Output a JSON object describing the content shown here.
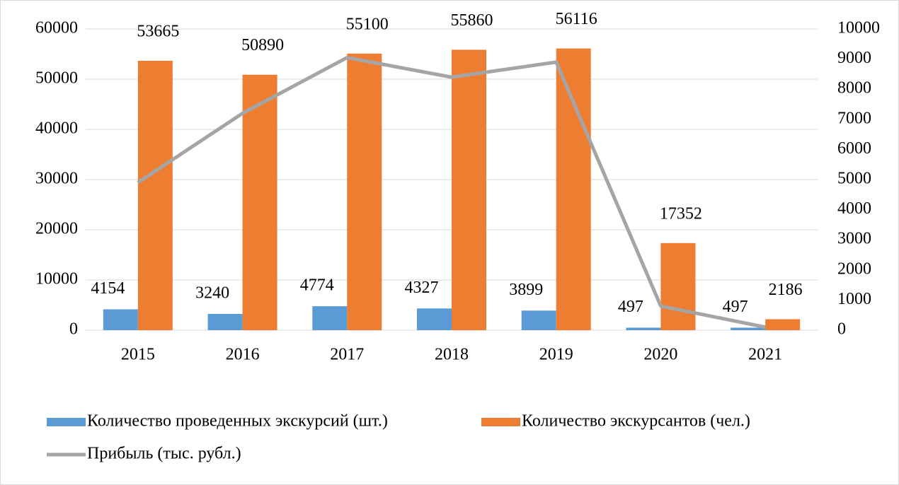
{
  "chart_data": {
    "type": "bar",
    "categories": [
      "2015",
      "2016",
      "2017",
      "2018",
      "2019",
      "2020",
      "2021"
    ],
    "series": [
      {
        "name": "Количество проведенных экскурсий (шт.)",
        "color": "#5b9bd5",
        "values": [
          4154,
          3240,
          4774,
          4327,
          3899,
          497,
          497
        ]
      },
      {
        "name": "Количество экскурсантов (чел.)",
        "color": "#ed7d31",
        "values": [
          53665,
          50890,
          55100,
          55860,
          56116,
          17352,
          2186
        ]
      },
      {
        "name": "Прибыль (тыс. рубл.)",
        "color": "#a5a5a5",
        "type": "line",
        "axis": "y2",
        "values": [
          4900,
          7200,
          9050,
          8400,
          8900,
          800,
          100
        ]
      }
    ],
    "ylim": [
      0,
      60000
    ],
    "yticks": [
      0,
      10000,
      20000,
      30000,
      40000,
      50000,
      60000
    ],
    "y2lim": [
      0,
      10000
    ],
    "y2ticks": [
      0,
      1000,
      2000,
      3000,
      4000,
      5000,
      6000,
      7000,
      8000,
      9000,
      10000
    ],
    "grid": true,
    "legend": "bottom"
  }
}
